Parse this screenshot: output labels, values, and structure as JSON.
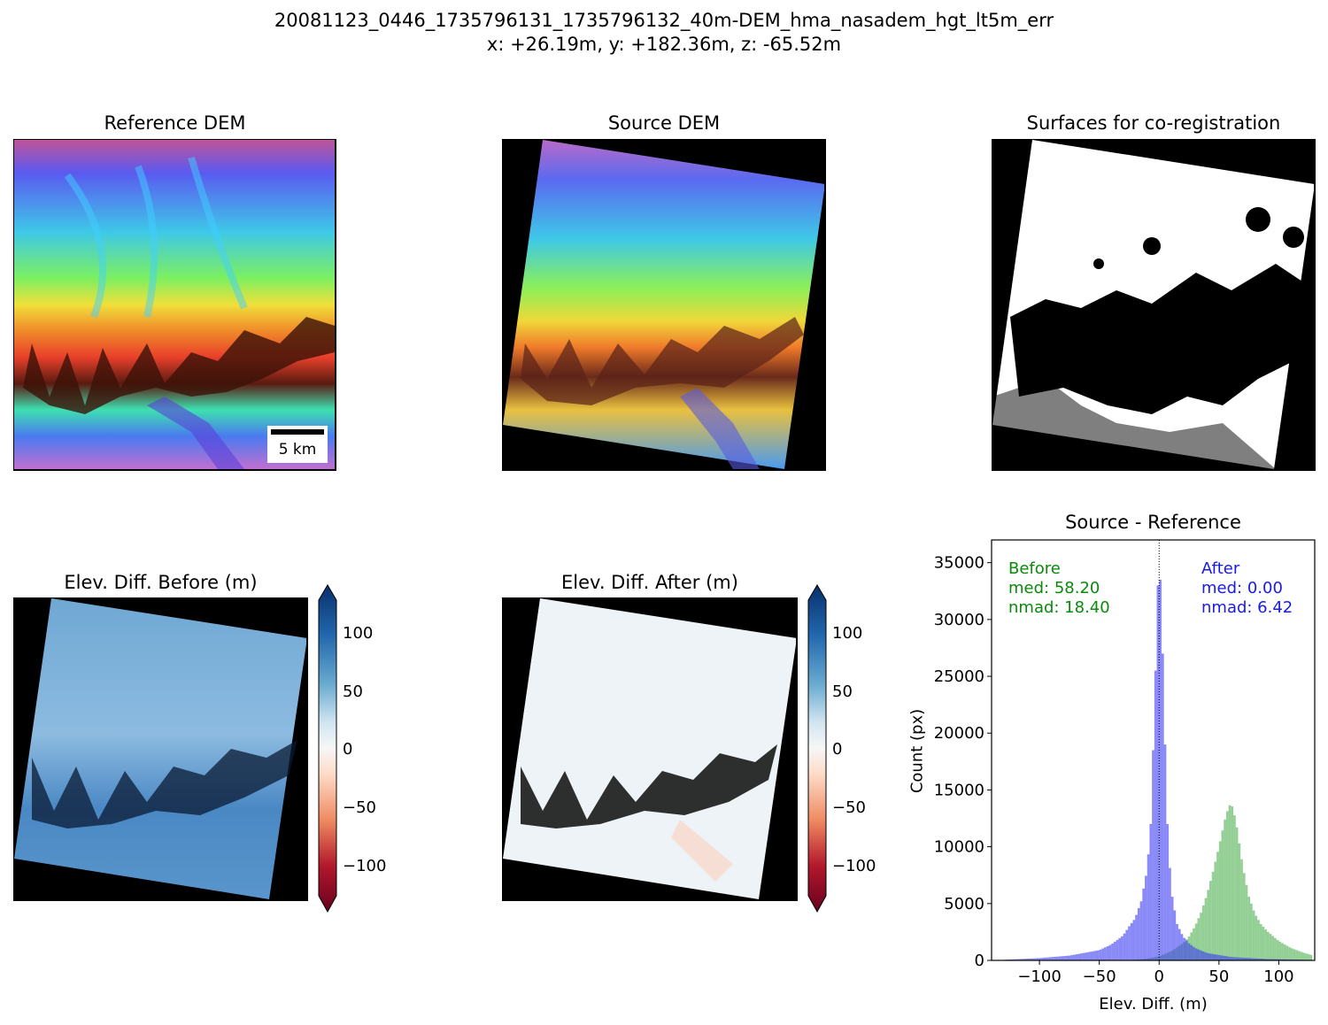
{
  "figure": {
    "title": "20081123_0446_1735796131_1735796132_40m-DEM_hma_nasadem_hgt_lt5m_err",
    "subtitle": "x: +26.19m, y: +182.36m, z: -65.52m"
  },
  "panels": {
    "reference_dem": {
      "title": "Reference DEM",
      "scalebar_label": "5 km",
      "colormap": "turbo"
    },
    "source_dem": {
      "title": "Source DEM",
      "colormap": "turbo"
    },
    "surfaces": {
      "title": "Surfaces for co-registration"
    },
    "diff_before": {
      "title": "Elev. Diff. Before (m)",
      "colormap": "RdBu"
    },
    "diff_after": {
      "title": "Elev. Diff. After (m)",
      "colormap": "RdBu"
    }
  },
  "colorbar": {
    "ticks": [
      "100",
      "50",
      "0",
      "−50",
      "−100"
    ],
    "tick_values": [
      100,
      50,
      0,
      -50,
      -100
    ],
    "range": [
      -125,
      125
    ],
    "extend": "both"
  },
  "chart_data": {
    "type": "bar",
    "title": "Source - Reference",
    "xlabel": "Elev. Diff. (m)",
    "ylabel": "Count (px)",
    "xlim": [
      -140,
      130
    ],
    "ylim": [
      0,
      37000
    ],
    "x_ticks": [
      "−100",
      "−50",
      "0",
      "50",
      "100"
    ],
    "x_tick_values": [
      -100,
      -50,
      0,
      50,
      100
    ],
    "y_ticks": [
      "0",
      "5000",
      "10000",
      "15000",
      "20000",
      "25000",
      "30000",
      "35000"
    ],
    "y_tick_values": [
      0,
      5000,
      10000,
      15000,
      20000,
      25000,
      30000,
      35000
    ],
    "legend": "top-left / top-right text annotations",
    "series": [
      {
        "name": "Before",
        "color": "#4caf50",
        "annotation": [
          "Before",
          "med: 58.20",
          "nmad: 18.40"
        ],
        "x": [
          -20,
          -10,
          0,
          10,
          20,
          25,
          30,
          35,
          40,
          45,
          50,
          55,
          58,
          60,
          62,
          65,
          70,
          75,
          80,
          85,
          90,
          100,
          110,
          120,
          128
        ],
        "values": [
          50,
          150,
          350,
          800,
          1500,
          2100,
          3000,
          4200,
          5800,
          7800,
          10000,
          12400,
          13500,
          13800,
          13300,
          11700,
          8200,
          5600,
          4100,
          3200,
          2600,
          1700,
          1100,
          700,
          450
        ]
      },
      {
        "name": "After",
        "color": "#3a3af2",
        "annotation": [
          "After",
          "med: 0.00",
          "nmad: 6.42"
        ],
        "x": [
          -130,
          -100,
          -75,
          -50,
          -40,
          -30,
          -25,
          -20,
          -15,
          -10,
          -7,
          -5,
          -3,
          -1,
          0,
          1,
          3,
          5,
          7,
          10,
          15,
          20,
          25,
          30,
          40,
          60,
          90,
          128
        ],
        "values": [
          50,
          200,
          420,
          900,
          1400,
          2200,
          3000,
          3700,
          5200,
          8000,
          12000,
          18500,
          25500,
          33000,
          36000,
          33500,
          27000,
          19000,
          12000,
          6200,
          3200,
          2100,
          1500,
          1100,
          650,
          300,
          120,
          40
        ]
      }
    ],
    "reference_line_x": 0
  }
}
